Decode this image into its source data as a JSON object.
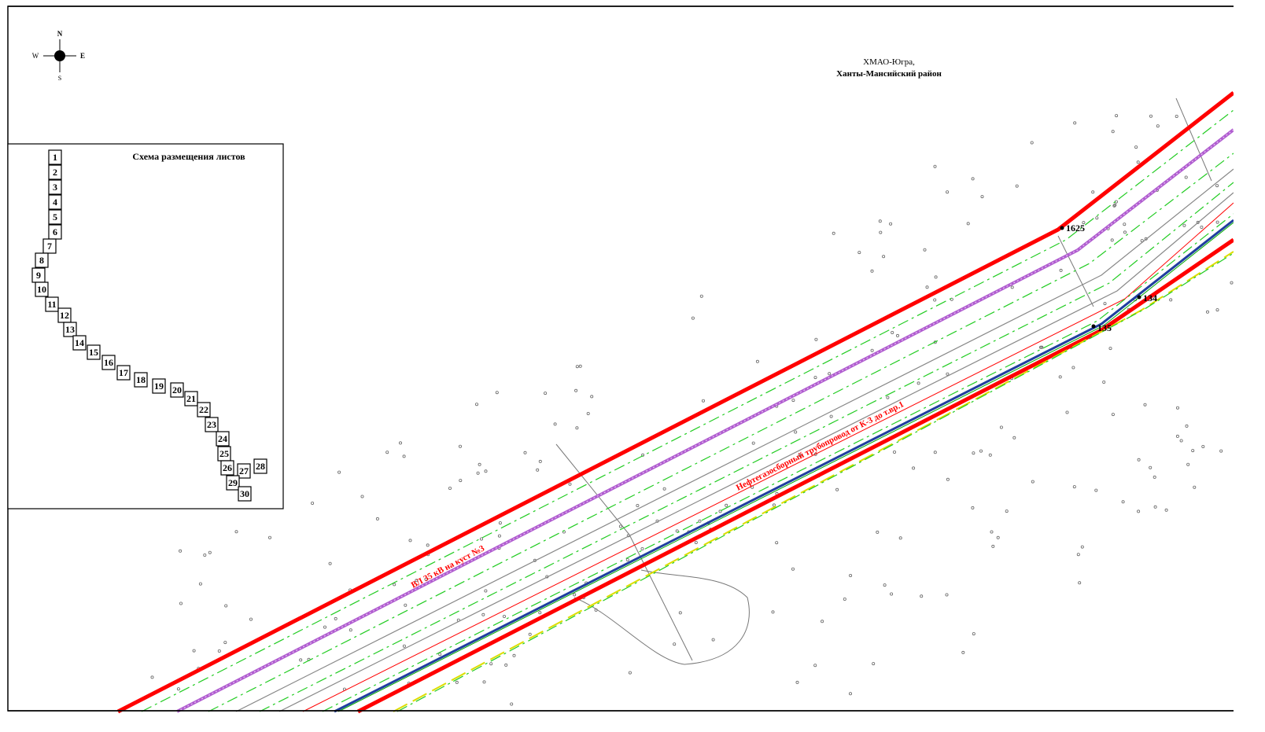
{
  "compass": {
    "north": "N",
    "south": "S",
    "west": "W",
    "east": "E"
  },
  "region": {
    "line1": "ХМАО-Югра,",
    "line2": "Ханты-Мансийский район"
  },
  "sheet_scheme": {
    "title": "Схема размещения листов",
    "sheets": [
      "1",
      "2",
      "3",
      "4",
      "5",
      "6",
      "7",
      "8",
      "9",
      "10",
      "11",
      "12",
      "13",
      "14",
      "15",
      "16",
      "17",
      "18",
      "19",
      "20",
      "21",
      "22",
      "23",
      "24",
      "25",
      "26",
      "27",
      "28",
      "29",
      "30"
    ]
  },
  "points": [
    "1625",
    "134",
    "135"
  ],
  "line_labels": [
    "ВЛ 35 кВ на куст №3",
    "Нефтегазосборный трубопровод от К-3 до т.вр.1"
  ]
}
